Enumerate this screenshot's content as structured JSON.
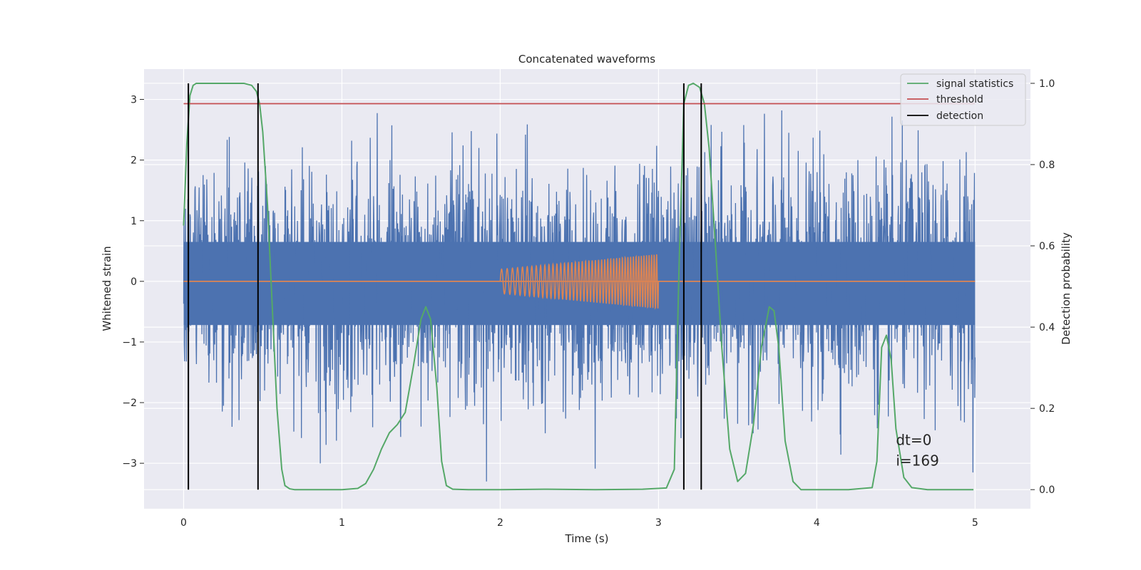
{
  "chart_data": {
    "type": "line",
    "title": "Concatenated waveforms",
    "xlabel": "Time (s)",
    "ylabel": "Whitened strain",
    "y2label": "Detection probability",
    "xlim": [
      -0.25,
      5.35
    ],
    "ylim": [
      -3.75,
      3.5
    ],
    "y2lim": [
      -0.047,
      1.035
    ],
    "x_ticks": [
      0,
      1,
      2,
      3,
      4,
      5
    ],
    "y_ticks": [
      -3,
      -2,
      -1,
      0,
      1,
      2,
      3
    ],
    "y2_ticks": [
      0.0,
      0.2,
      0.4,
      0.6,
      0.8,
      1.0
    ],
    "x_tick_labels": [
      "0",
      "1",
      "2",
      "3",
      "4",
      "5"
    ],
    "y_tick_labels": [
      "−3",
      "−2",
      "−1",
      "0",
      "1",
      "2",
      "3"
    ],
    "y2_tick_labels": [
      "0.0",
      "0.2",
      "0.4",
      "0.6",
      "0.8",
      "1.0"
    ],
    "grid": true,
    "legend_position": "top-right",
    "colors": {
      "strain": "#4c72b0",
      "injection": "#dd8452",
      "signal": "#55a868",
      "threshold": "#c44e52",
      "detection": "#000000",
      "background": "#eaeaf2",
      "grid": "#ffffff"
    },
    "series": [
      {
        "name": "signal statistics",
        "axis": "right",
        "x": [
          0.0,
          0.02,
          0.04,
          0.06,
          0.08,
          0.1,
          0.15,
          0.2,
          0.3,
          0.38,
          0.43,
          0.46,
          0.48,
          0.5,
          0.53,
          0.56,
          0.59,
          0.62,
          0.64,
          0.67,
          0.7,
          0.8,
          1.0,
          1.1,
          1.15,
          1.2,
          1.25,
          1.3,
          1.35,
          1.4,
          1.45,
          1.5,
          1.53,
          1.56,
          1.6,
          1.63,
          1.66,
          1.7,
          1.8,
          2.0,
          2.3,
          2.6,
          2.9,
          3.05,
          3.1,
          3.13,
          3.16,
          3.19,
          3.22,
          3.26,
          3.29,
          3.32,
          3.36,
          3.4,
          3.45,
          3.5,
          3.55,
          3.6,
          3.65,
          3.7,
          3.73,
          3.76,
          3.8,
          3.85,
          3.9,
          4.0,
          4.2,
          4.35,
          4.38,
          4.41,
          4.44,
          4.47,
          4.5,
          4.55,
          4.6,
          4.7,
          4.85,
          4.99
        ],
        "values": [
          0.65,
          0.85,
          0.97,
          0.995,
          1.0,
          1.0,
          1.0,
          1.0,
          1.0,
          1.0,
          0.995,
          0.98,
          0.95,
          0.88,
          0.7,
          0.45,
          0.2,
          0.05,
          0.01,
          0.002,
          0.0,
          0.0,
          0.0,
          0.003,
          0.015,
          0.05,
          0.1,
          0.14,
          0.16,
          0.19,
          0.3,
          0.42,
          0.45,
          0.42,
          0.25,
          0.07,
          0.01,
          0.001,
          0.0,
          0.0,
          0.001,
          0.0,
          0.001,
          0.004,
          0.05,
          0.55,
          0.95,
          0.995,
          1.0,
          0.99,
          0.95,
          0.84,
          0.6,
          0.35,
          0.1,
          0.02,
          0.04,
          0.16,
          0.35,
          0.45,
          0.44,
          0.35,
          0.12,
          0.02,
          0.0,
          0.0,
          0.0,
          0.005,
          0.07,
          0.35,
          0.38,
          0.32,
          0.15,
          0.03,
          0.005,
          0.0,
          0.0,
          0.0
        ]
      },
      {
        "name": "threshold",
        "axis": "right",
        "x": [
          0.0,
          5.0
        ],
        "values": [
          0.95,
          0.95
        ]
      },
      {
        "name": "detection",
        "axis": "right",
        "type": "vlines",
        "x": [
          0.03,
          0.47,
          3.16,
          3.27
        ],
        "ymin": 0.0,
        "ymax": 1.0
      },
      {
        "axis": "left",
        "type": "chirp",
        "x_start": 2.0,
        "x_end": 3.0,
        "amp_start": 0.2,
        "amp_end": 0.45,
        "cycles": 46
      }
    ],
    "strain": {
      "axis": "left",
      "x_range": [
        0.0,
        5.0
      ],
      "band": [
        -0.72,
        0.65
      ]
    },
    "annotations": [
      {
        "text": "dt=0",
        "x": 4.5,
        "y": -2.7
      },
      {
        "text": "i=169",
        "x": 4.5,
        "y": -3.04
      }
    ]
  }
}
